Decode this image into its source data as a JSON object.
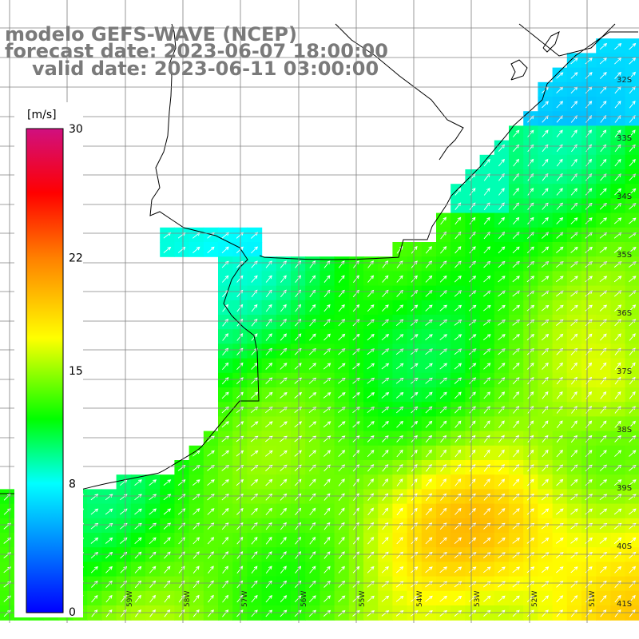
{
  "titles": {
    "line1": "modelo GEFS-WAVE (NCEP)",
    "line2": "forecast date: 2023-06-07 18:00:00",
    "line3": "valid date: 2023-06-11 03:00:00"
  },
  "colorbar": {
    "unit": "[m/s]",
    "ticks": [
      "30",
      "22",
      "15",
      "8",
      "0"
    ],
    "tick_values": [
      30,
      22,
      15,
      8,
      0
    ],
    "colors": [
      "#0000ff",
      "#00ffff",
      "#00ff00",
      "#ffff00",
      "#ff8000",
      "#ff0000",
      "#d01080"
    ]
  },
  "map": {
    "lon_labels": [
      "59W",
      "58W",
      "57W",
      "56W",
      "55W",
      "54W",
      "53W",
      "52W",
      "51W"
    ],
    "lat_labels": [
      "32S",
      "33S",
      "34S",
      "35S",
      "36S",
      "37S",
      "38S",
      "39S",
      "40S",
      "41S"
    ],
    "land_color": "#ffffff",
    "grid_color": "#808080",
    "arrow_color": "#ffffff",
    "wind_direction": "southwest"
  }
}
